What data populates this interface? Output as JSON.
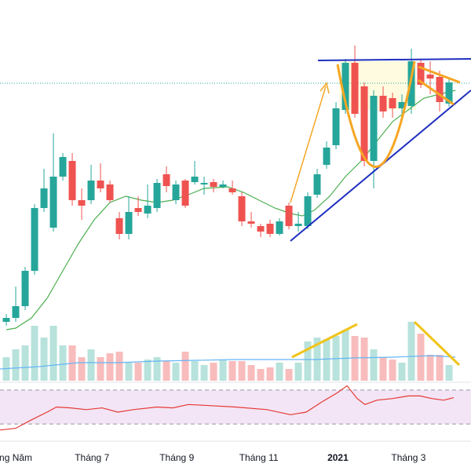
{
  "chart_data": [
    {
      "type": "candlestick",
      "x": [
        0,
        1,
        2,
        3,
        4,
        5,
        6,
        7,
        8,
        9,
        10,
        11,
        12,
        13,
        14,
        15,
        16,
        17,
        18,
        19,
        20,
        21,
        22,
        23,
        24,
        25,
        26,
        27,
        28,
        29,
        30,
        31,
        32,
        33,
        34,
        35,
        36,
        37,
        38,
        39,
        40,
        41,
        42,
        43,
        44,
        45,
        46,
        47
      ],
      "open": [
        90,
        95,
        110,
        155,
        235,
        210,
        275,
        295,
        245,
        245,
        270,
        265,
        222,
        202,
        235,
        228,
        235,
        278,
        245,
        270,
        268,
        265,
        268,
        262,
        260,
        250,
        218,
        212,
        215,
        202,
        238,
        212,
        212,
        252,
        290,
        315,
        360,
        420,
        390,
        295,
        378,
        375,
        362,
        365,
        420,
        405,
        402,
        368
      ],
      "high": [
        100,
        135,
        160,
        240,
        285,
        330,
        305,
        305,
        260,
        290,
        292,
        270,
        230,
        250,
        250,
        265,
        272,
        288,
        270,
        272,
        295,
        275,
        272,
        270,
        270,
        255,
        230,
        215,
        220,
        222,
        242,
        230,
        255,
        285,
        320,
        370,
        425,
        442,
        395,
        385,
        390,
        382,
        380,
        438,
        425,
        422,
        410,
        400
      ],
      "low": [
        85,
        90,
        105,
        150,
        230,
        205,
        270,
        238,
        220,
        240,
        255,
        242,
        195,
        195,
        225,
        222,
        230,
        255,
        240,
        235,
        265,
        252,
        255,
        260,
        252,
        212,
        210,
        198,
        198,
        200,
        208,
        205,
        208,
        248,
        285,
        310,
        355,
        350,
        288,
        260,
        350,
        350,
        355,
        355,
        388,
        380,
        358,
        364
      ],
      "close": [
        95,
        110,
        155,
        235,
        260,
        275,
        300,
        245,
        238,
        270,
        260,
        245,
        202,
        230,
        230,
        238,
        267,
        263,
        265,
        238,
        275,
        267,
        262,
        265,
        255,
        218,
        215,
        205,
        202,
        218,
        212,
        215,
        250,
        278,
        312,
        362,
        420,
        355,
        295,
        378,
        358,
        362,
        370,
        422,
        392,
        400,
        370,
        395
      ],
      "up_color": "#26a69a",
      "down_color": "#ef5350",
      "ylim": [
        15,
        500
      ],
      "xlim": [
        -0.67,
        49.33
      ],
      "xticks": [
        {
          "value": 1,
          "label": "ng Năm"
        },
        {
          "value": 9.1,
          "label": "Tháng 7"
        },
        {
          "value": 18.1,
          "label": "Tháng 9"
        },
        {
          "value": 26.8,
          "label": "Tháng 11"
        },
        {
          "value": 35.2,
          "label": "2021"
        },
        {
          "value": 42.7,
          "label": "Tháng 3"
        }
      ],
      "ma": {
        "color": "#4caf50",
        "x": [
          0,
          1,
          2.67,
          4.33,
          6,
          7.67,
          9.33,
          11,
          12.67,
          14.33,
          16,
          17.67,
          19.33,
          21,
          23.5,
          25.17,
          26.83,
          28.5,
          30.17,
          31.42,
          32.67,
          34.33,
          36,
          37.67,
          39.33,
          41,
          42.67,
          44.33,
          46,
          47.67
        ],
        "values": [
          80,
          82,
          95,
          120,
          155,
          190,
          220,
          242,
          250,
          245,
          242,
          245,
          252,
          260,
          262,
          255,
          245,
          235,
          228,
          225,
          232,
          250,
          275,
          295,
          320,
          345,
          360,
          375,
          380,
          385
        ]
      },
      "price_line": 394,
      "price_line_color": "#26a69a"
    },
    {
      "type": "bar",
      "x": [
        0,
        1,
        2,
        3,
        4,
        5,
        6,
        7,
        8,
        9,
        10,
        11,
        12,
        13,
        14,
        15,
        16,
        17,
        18,
        19,
        20,
        21,
        22,
        23,
        24,
        25,
        26,
        27,
        28,
        29,
        30,
        31,
        32,
        33,
        34,
        35,
        36,
        37,
        38,
        39,
        40,
        41,
        42,
        43,
        44,
        45,
        46,
        47
      ],
      "values": [
        30,
        40,
        45,
        70,
        55,
        70,
        45,
        45,
        30,
        40,
        30,
        35,
        37,
        23,
        23,
        27,
        30,
        25,
        23,
        37,
        25,
        20,
        23,
        27,
        25,
        25,
        20,
        15,
        17,
        23,
        15,
        23,
        50,
        55,
        53,
        57,
        65,
        57,
        55,
        40,
        30,
        27,
        23,
        75,
        60,
        33,
        33,
        20
      ],
      "up_color": "#b8e2dc",
      "down_color": "#f8bcbc",
      "ylim": [
        0,
        485
      ],
      "xlim": [
        -0.67,
        49.33
      ],
      "ma": {
        "color": "#64b5f6",
        "x": [
          -0.67,
          3.5,
          7.67,
          11.83,
          16,
          20.17,
          24.33,
          28.5,
          32.67,
          36.83,
          41,
          45.17,
          47.67
        ],
        "values": [
          15,
          18,
          23,
          23,
          25,
          26,
          27,
          27,
          27,
          29,
          30,
          32,
          30
        ]
      }
    },
    {
      "type": "line",
      "x": [
        -0.67,
        1,
        2.67,
        4.33,
        5.33,
        6.83,
        8.5,
        10.17,
        11.83,
        13.5,
        16,
        17.67,
        19.33,
        21,
        24.33,
        27.67,
        30.17,
        31.83,
        33.5,
        35.17,
        36.17,
        37.25,
        38.08,
        39.33,
        41,
        42.67,
        43.92,
        45.17,
        46.42,
        47.5
      ],
      "values": [
        23,
        25,
        35,
        44,
        50,
        49,
        47,
        49,
        44,
        47,
        50,
        49,
        53,
        52,
        50,
        47,
        41,
        44,
        56,
        67,
        75,
        60,
        53,
        58,
        60,
        63,
        63,
        60,
        58,
        61
      ],
      "color": "#e53935",
      "band_color": "#f3e5f5",
      "ylim": [
        20,
        80
      ],
      "xlim": [
        -0.67,
        49.33
      ],
      "levels": [
        30,
        70
      ]
    }
  ]
}
